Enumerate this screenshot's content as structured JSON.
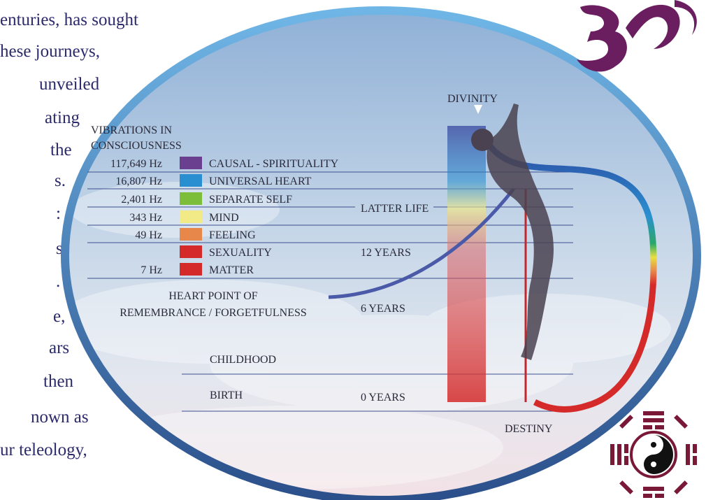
{
  "side_text": [
    {
      "text": "enturies, has sought"
    },
    {
      "text": "hese journeys,"
    },
    {
      "text": "unveiled"
    },
    {
      "text": "ating"
    },
    {
      "text": "the"
    },
    {
      "text": "s."
    },
    {
      "text": ":",
      "color": "#c0282d"
    },
    {
      "text": "s"
    },
    {
      "text": "."
    },
    {
      "text": "e,"
    },
    {
      "text": "ars"
    },
    {
      "text": "then"
    },
    {
      "text": "nown as"
    },
    {
      "text": "ur teleology,"
    }
  ],
  "diagram": {
    "heading": [
      "VIBRATIONS IN",
      "CONSCIOUSNESS"
    ],
    "levels": [
      {
        "frequency": "117,649 Hz",
        "label": "CAUSAL - SPIRITUALITY",
        "color": "#6b3f8f"
      },
      {
        "frequency": "16,807 Hz",
        "label": "UNIVERSAL HEART",
        "color": "#2a8fd0"
      },
      {
        "frequency": "2,401 Hz",
        "label": "SEPARATE SELF",
        "color": "#7cbd3a"
      },
      {
        "frequency": "343 Hz",
        "label": "MIND",
        "color": "#f2ea86"
      },
      {
        "frequency": "49 Hz",
        "label": "FEELING",
        "color": "#e8874a"
      },
      {
        "label": "SEXUALITY",
        "color": "#d42a2a"
      },
      {
        "frequency": "7 Hz",
        "label": "MATTER",
        "color": "#d42a2a"
      }
    ],
    "divinity": "DIVINITY",
    "destiny": "DESTINY",
    "heart_point": [
      "HEART POINT OF",
      "REMEMBRANCE / FORGETFULNESS"
    ],
    "ages": [
      "LATTER LIFE",
      "12 YEARS",
      "6 YEARS",
      "0 YEARS"
    ],
    "stages": [
      "CHILDHOOD",
      "BIRTH"
    ]
  }
}
